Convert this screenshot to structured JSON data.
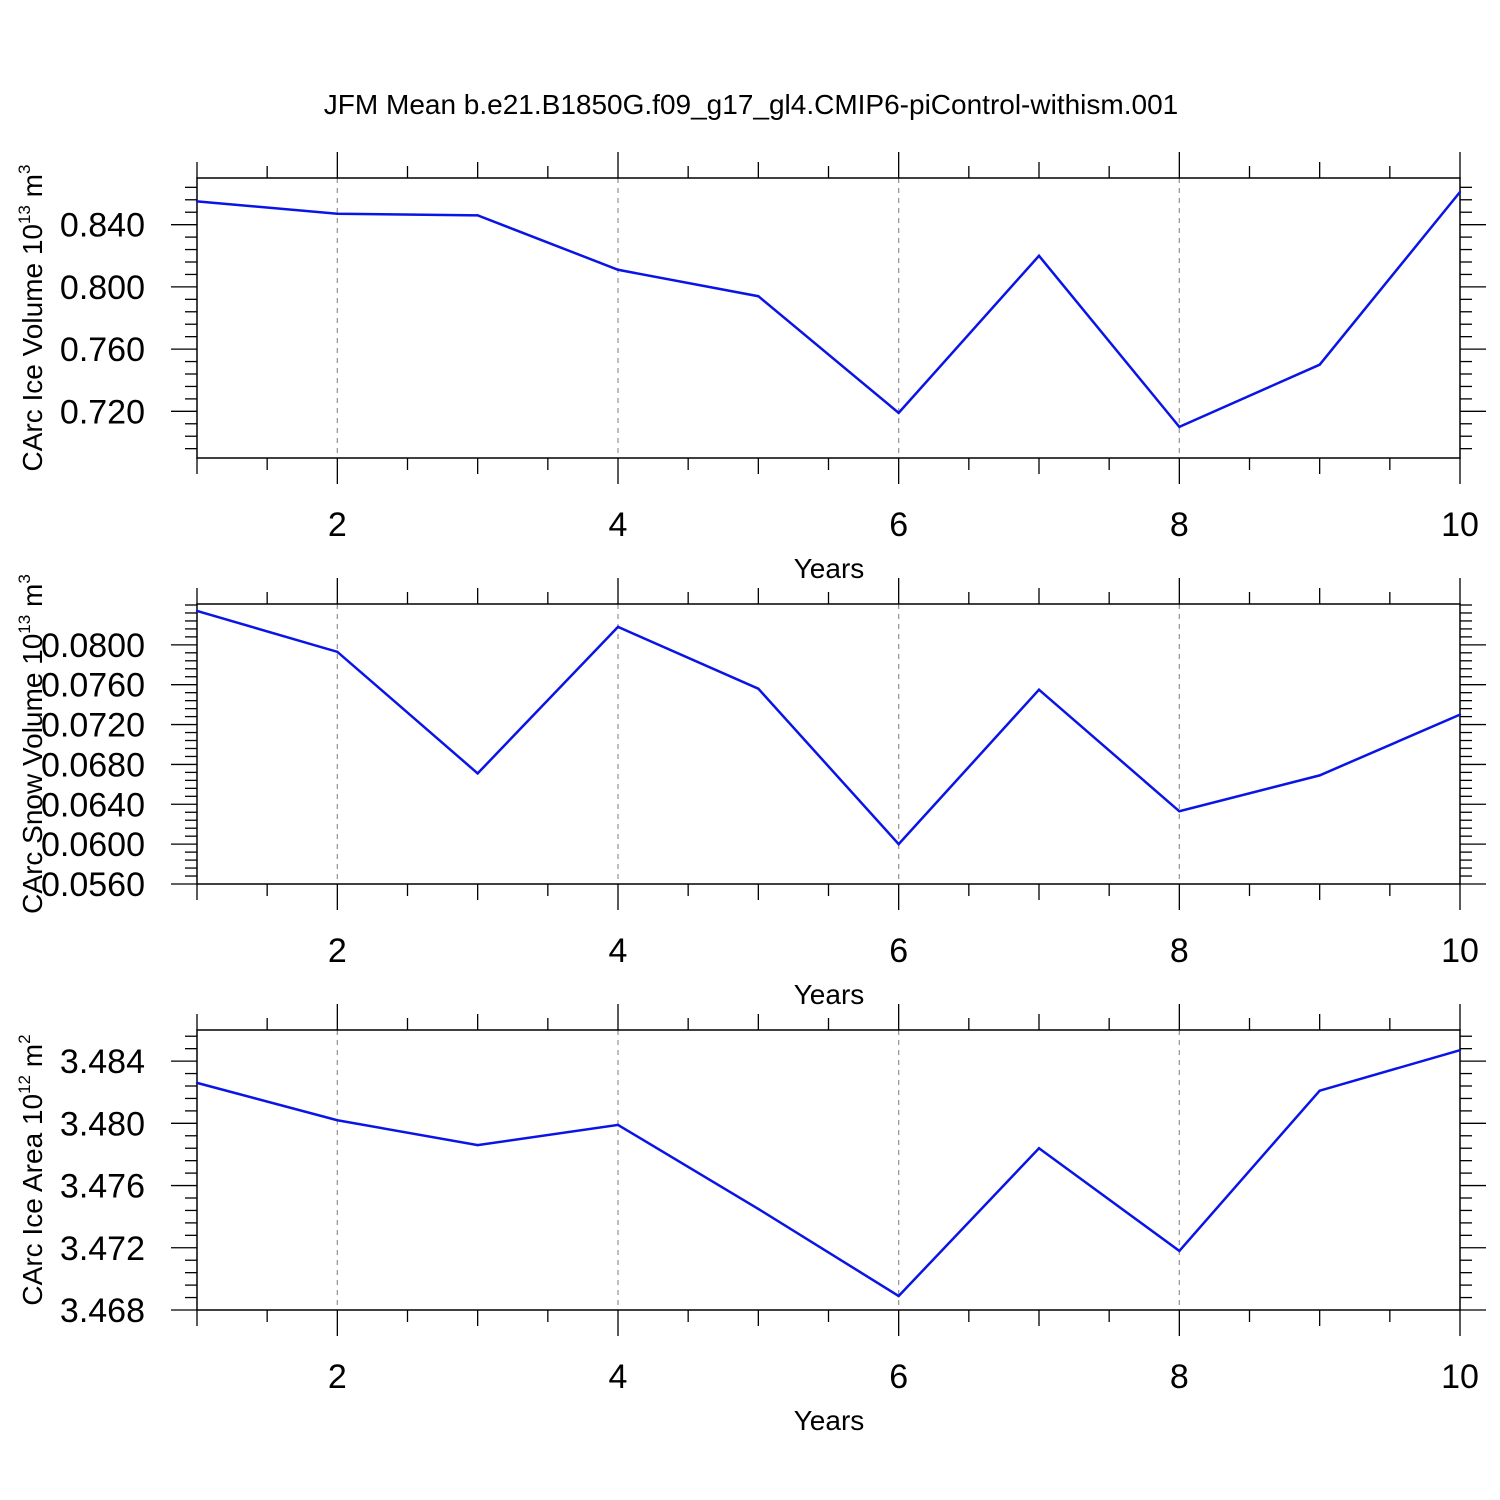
{
  "figure": {
    "title": "JFM Mean b.e21.B1850G.f09_g17_gl4.CMIP6-piControl-withism.001"
  },
  "colors": {
    "series": "#0a14e6",
    "axis": "#000000",
    "grid": "#9a9a9a"
  },
  "chart_data": [
    {
      "type": "line",
      "title": "",
      "xlabel": "Years",
      "ylabel": {
        "base": "CArc Ice Volume 10",
        "exponent": "13",
        "unit": " m",
        "unit_exponent": "3"
      },
      "xlim": [
        1,
        10
      ],
      "ylim": [
        0.69,
        0.87
      ],
      "xticks": [
        2,
        4,
        6,
        8,
        10
      ],
      "yticks": [
        0.72,
        0.76,
        0.8,
        0.84
      ],
      "ytick_labels": [
        "0.720",
        "0.760",
        "0.800",
        "0.840"
      ],
      "grid": "vertical dashed at major x ticks",
      "x": [
        1,
        2,
        3,
        4,
        5,
        6,
        7,
        8,
        9,
        10
      ],
      "series": [
        {
          "values": [
            0.855,
            0.847,
            0.846,
            0.811,
            0.794,
            0.719,
            0.82,
            0.71,
            0.75,
            0.861
          ]
        }
      ]
    },
    {
      "type": "line",
      "title": "",
      "xlabel": "Years",
      "ylabel": {
        "base": "CArc Snow Volume 10",
        "exponent": "13",
        "unit": " m",
        "unit_exponent": "3"
      },
      "xlim": [
        1,
        10
      ],
      "ylim": [
        0.056,
        0.0841
      ],
      "xticks": [
        2,
        4,
        6,
        8,
        10
      ],
      "yticks": [
        0.056,
        0.06,
        0.064,
        0.068,
        0.072,
        0.076,
        0.08
      ],
      "ytick_labels": [
        "0.0560",
        "0.0600",
        "0.0640",
        "0.0680",
        "0.0720",
        "0.0760",
        "0.0800"
      ],
      "grid": "vertical dashed at major x ticks",
      "x": [
        1,
        2,
        3,
        4,
        5,
        6,
        7,
        8,
        9,
        10
      ],
      "series": [
        {
          "values": [
            0.0834,
            0.0793,
            0.0671,
            0.0818,
            0.0756,
            0.06,
            0.0755,
            0.0633,
            0.0669,
            0.073
          ]
        }
      ]
    },
    {
      "type": "line",
      "title": "",
      "xlabel": "Years",
      "ylabel": {
        "base": "CArc Ice Area 10",
        "exponent": "12",
        "unit": " m",
        "unit_exponent": "2"
      },
      "xlim": [
        1,
        10
      ],
      "ylim": [
        3.468,
        3.486
      ],
      "xticks": [
        2,
        4,
        6,
        8,
        10
      ],
      "yticks": [
        3.468,
        3.472,
        3.476,
        3.48,
        3.484
      ],
      "ytick_labels": [
        "3.468",
        "3.472",
        "3.476",
        "3.480",
        "3.484"
      ],
      "grid": "vertical dashed at major x ticks",
      "x": [
        1,
        2,
        3,
        4,
        5,
        6,
        7,
        8,
        9,
        10
      ],
      "series": [
        {
          "values": [
            3.4826,
            3.4802,
            3.4786,
            3.4799,
            3.4745,
            3.4689,
            3.4784,
            3.4718,
            3.4821,
            3.4847
          ]
        }
      ]
    }
  ]
}
